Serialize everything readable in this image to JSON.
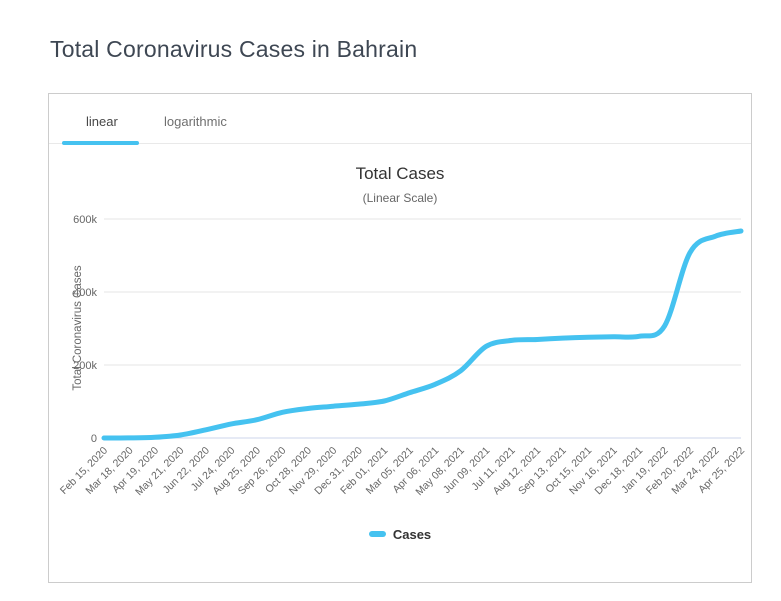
{
  "page": {
    "title": "Total Coronavirus Cases in Bahrain"
  },
  "tabs": {
    "linear": "linear",
    "logarithmic": "logarithmic",
    "active_tab": "linear"
  },
  "colors": {
    "accent": "#45c2f0"
  },
  "chart_data": {
    "type": "line",
    "title": "Total Cases",
    "subtitle": "(Linear Scale)",
    "ylabel": "Total Coronavirus Cases",
    "ylim": [
      0,
      600000
    ],
    "ytick_values": [
      0,
      200000,
      400000,
      600000
    ],
    "ytick_labels": [
      "0",
      "200k",
      "400k",
      "600k"
    ],
    "grid": "horizontal",
    "legend_position": "bottom center",
    "categories": [
      "Feb 15, 2020",
      "Mar 18, 2020",
      "Apr 19, 2020",
      "May 21, 2020",
      "Jun 22, 2020",
      "Jul 24, 2020",
      "Aug 25, 2020",
      "Sep 26, 2020",
      "Oct 28, 2020",
      "Nov 29, 2020",
      "Dec 31, 2020",
      "Feb 01, 2021",
      "Mar 05, 2021",
      "Apr 06, 2021",
      "May 08, 2021",
      "Jun 09, 2021",
      "Jul 11, 2021",
      "Aug 12, 2021",
      "Sep 13, 2021",
      "Oct 15, 2021",
      "Nov 16, 2021",
      "Dec 18, 2021",
      "Jan 19, 2022",
      "Feb 20, 2022",
      "Mar 24, 2022",
      "Apr 25, 2022"
    ],
    "series": [
      {
        "name": "Cases",
        "color": "#45c2f0",
        "values": [
          0,
          300,
          1900,
          8200,
          22400,
          38500,
          50100,
          70400,
          80800,
          87000,
          93000,
          101500,
          124300,
          147200,
          184300,
          251100,
          267500,
          269900,
          273700,
          276100,
          277300,
          278600,
          307000,
          508000,
          553000,
          567000
        ]
      }
    ],
    "colors": {
      "grid": "#e6e6e6",
      "axis": "#ccd6eb",
      "tick_text": "#666666"
    }
  }
}
